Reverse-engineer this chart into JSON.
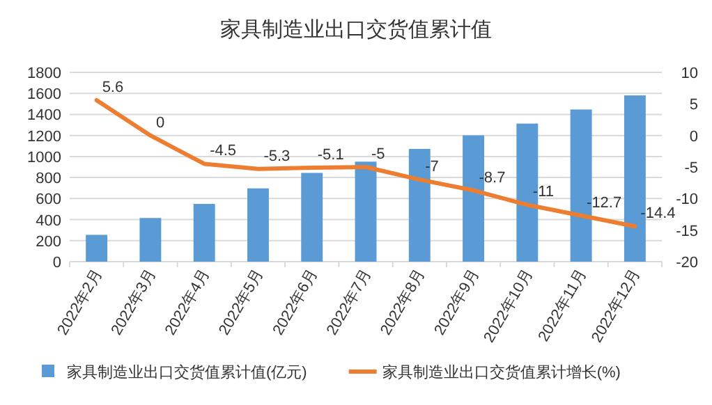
{
  "chart_data": {
    "type": "bar",
    "title": "家具制造业出口交货值累计值",
    "categories": [
      "2022年2月",
      "2022年3月",
      "2022年4月",
      "2022年5月",
      "2022年6月",
      "2022年7月",
      "2022年8月",
      "2022年9月",
      "2022年10月",
      "2022年11月",
      "2022年12月"
    ],
    "series": [
      {
        "name": "家具制造业出口交货值累计值(亿元)",
        "color": "#5b9bd5",
        "values": [
          255,
          415,
          549,
          697,
          844,
          951,
          1072,
          1201,
          1313,
          1447,
          1581
        ]
      },
      {
        "name": "家具制造业出口交货值累计增长(%)",
        "type": "line",
        "axis": "y2",
        "color": "#ed7d31",
        "values": [
          5.6,
          0,
          -4.5,
          -5.3,
          -5.1,
          -5,
          -7,
          -8.7,
          -11,
          -12.7,
          -14.4
        ],
        "value_labels": [
          "5.6",
          "0",
          "-4.5",
          "-5.3",
          "-5.1",
          "-5",
          "-7",
          "-8.7",
          "-11",
          "-12.7",
          "-14.4"
        ]
      }
    ],
    "ylim": [
      0,
      1800
    ],
    "yticks": [
      0,
      200,
      400,
      600,
      800,
      1000,
      1200,
      1400,
      1600,
      1800
    ],
    "y2lim": [
      -20,
      10
    ],
    "y2ticks": [
      -20,
      -15,
      -10,
      -5,
      0,
      5,
      10
    ],
    "grid": "y",
    "legend": "bottom"
  }
}
